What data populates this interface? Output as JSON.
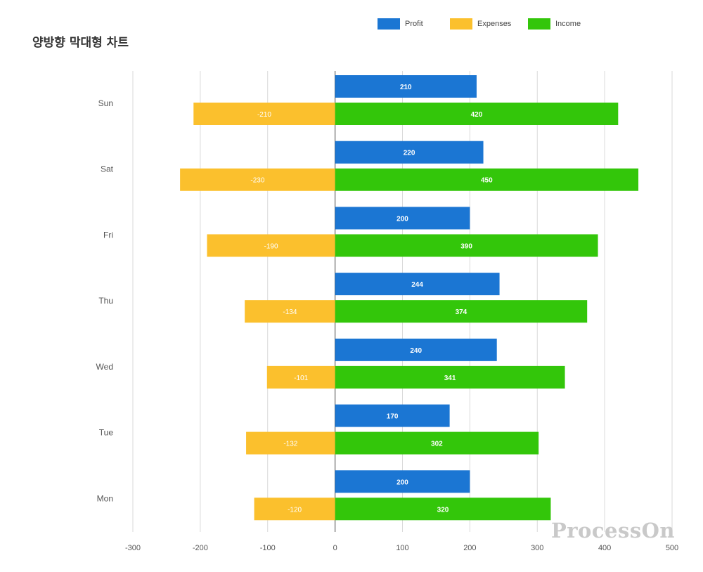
{
  "title": "양방향 막대형 차트",
  "watermark": "ProcessOn",
  "colors": {
    "Profit": "#1b76d3",
    "Expenses": "#fbc02d",
    "Income": "#33c60a",
    "grid": "#d9d9d9",
    "axis": "#666666",
    "text": "#555555"
  },
  "chart_data": {
    "type": "bar",
    "orientation": "horizontal",
    "title": "양방향 막대형 차트",
    "categories": [
      "Sun",
      "Sat",
      "Fri",
      "Thu",
      "Wed",
      "Tue",
      "Mon"
    ],
    "series": [
      {
        "name": "Profit",
        "values": [
          210,
          220,
          200,
          244,
          240,
          170,
          200
        ]
      },
      {
        "name": "Expenses",
        "values": [
          -210,
          -230,
          -190,
          -134,
          -101,
          -132,
          -120
        ]
      },
      {
        "name": "Income",
        "values": [
          420,
          450,
          390,
          374,
          341,
          302,
          320
        ]
      }
    ],
    "x_ticks": [
      "-300",
      "-200",
      "-100",
      "0",
      "100",
      "200",
      "300",
      "400",
      "500"
    ],
    "xlim": [
      -300,
      500
    ],
    "grid": true,
    "legend_position": "top-center"
  }
}
